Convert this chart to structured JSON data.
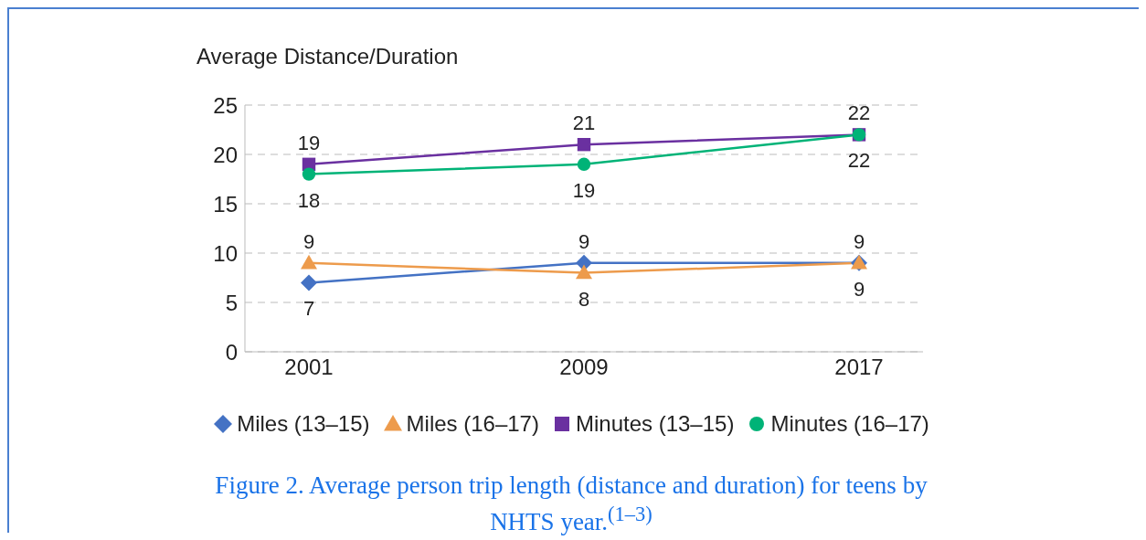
{
  "chart_data": {
    "type": "line",
    "title": "Figure 2. Average person trip length (distance and duration) for teens by NHTS year.$^{(1–3)}$",
    "ylabel": "Average Distance/Duration",
    "categories": [
      "2001",
      "2009",
      "2017"
    ],
    "series": [
      {
        "name": "Miles (13–15)",
        "color": "#4472c4",
        "marker": "diamond",
        "values": [
          7,
          9,
          9
        ]
      },
      {
        "name": "Miles (16–17)",
        "color": "#ed9b4c",
        "marker": "triangle",
        "values": [
          9,
          8,
          9
        ]
      },
      {
        "name": "Minutes (13–15)",
        "color": "#6a30a0",
        "marker": "square",
        "values": [
          19,
          21,
          22
        ]
      },
      {
        "name": "Minutes (16–17)",
        "color": "#00b377",
        "marker": "circle",
        "values": [
          18,
          19,
          22
        ]
      }
    ],
    "ylim": [
      0,
      25
    ],
    "yticks": [
      0,
      5,
      10,
      15,
      20,
      25
    ],
    "grid": "y",
    "legend": "bottom",
    "data_labels": true,
    "line_style": "solid"
  }
}
